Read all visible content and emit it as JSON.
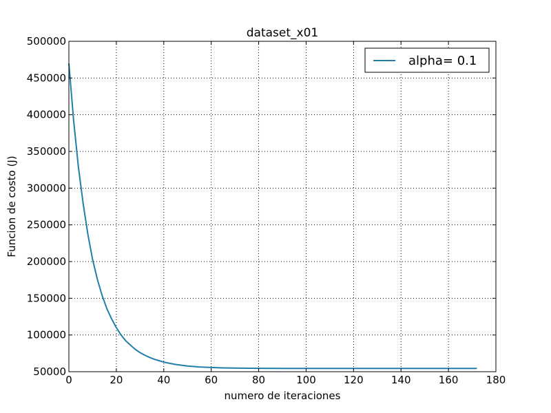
{
  "chart_data": {
    "type": "line",
    "title": "dataset_x01",
    "xlabel": "numero de iteraciones",
    "ylabel": "Funcion de costo (J)",
    "xlim": [
      0,
      180
    ],
    "ylim": [
      50000,
      500000
    ],
    "x_ticks": [
      "0",
      "20",
      "40",
      "60",
      "80",
      "100",
      "120",
      "140",
      "160",
      "180"
    ],
    "y_ticks": [
      "50000",
      "100000",
      "150000",
      "200000",
      "250000",
      "300000",
      "350000",
      "400000",
      "450000",
      "500000"
    ],
    "grid": true,
    "legend_position": "top-right",
    "series": [
      {
        "name": "alpha= 0.1",
        "color": "#1f7fa8",
        "x": [
          0,
          2,
          4,
          6,
          8,
          10,
          12,
          14,
          16,
          18,
          20,
          22,
          24,
          26,
          28,
          30,
          32,
          34,
          36,
          38,
          40,
          45,
          50,
          55,
          60,
          65,
          70,
          80,
          90,
          100,
          110,
          120,
          130,
          140,
          150,
          160,
          172
        ],
        "y": [
          470000,
          392000,
          329000,
          279000,
          237000,
          203000,
          176000,
          154000,
          136000,
          122000,
          110000,
          100000,
          92000,
          86000,
          80500,
          76000,
          72500,
          69500,
          67000,
          65000,
          63000,
          59800,
          57700,
          56500,
          55700,
          55200,
          54900,
          54600,
          54500,
          54450,
          54420,
          54400,
          54400,
          54400,
          54400,
          54400,
          54400
        ]
      }
    ]
  }
}
